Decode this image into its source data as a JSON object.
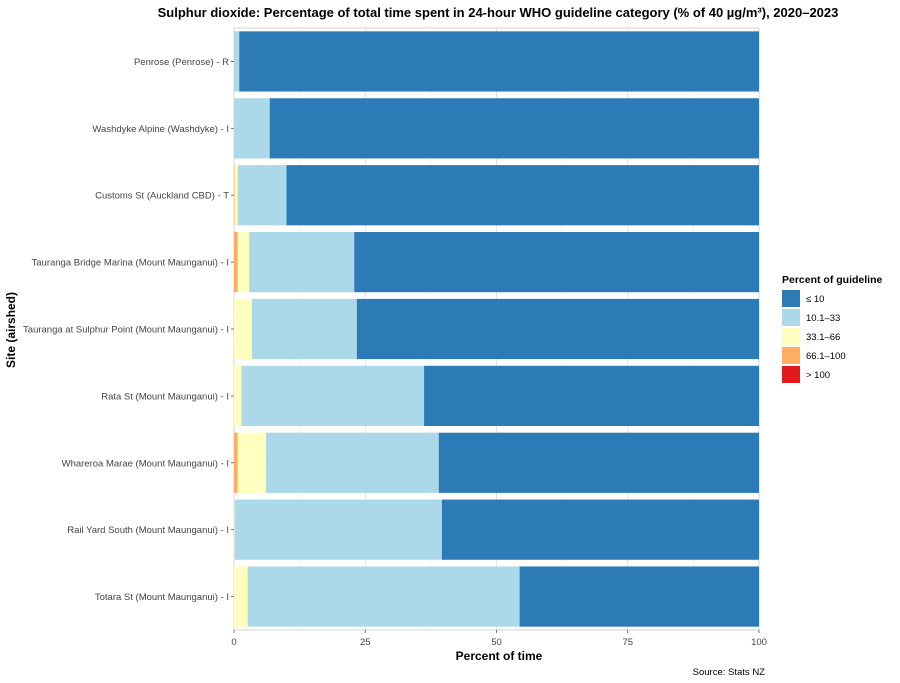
{
  "chart_data": {
    "type": "bar",
    "orientation": "horizontal",
    "stacked": true,
    "title": "Sulphur dioxide: Percentage of total time spent in 24-hour WHO guideline category (% of 40 µg/m³), 2020–2023",
    "xlabel": "Percent of time",
    "ylabel": "Site (airshed)",
    "xlim": [
      0,
      100
    ],
    "xticks": [
      "0",
      "25",
      "50",
      "75",
      "100"
    ],
    "grid": true,
    "legend": {
      "title": "Percent of guideline",
      "position": "right"
    },
    "source": "Source: Stats NZ",
    "categories": [
      "Penrose (Penrose) - R",
      "Washdyke Alpine (Washdyke) - I",
      "Customs St (Auckland CBD) - T",
      "Tauranga Bridge Marina (Mount Maunganui) - I",
      "Tauranga at Sulphur Point (Mount Maunganui) - I",
      "Rata St (Mount Maunganui) - I",
      "Whareroa Marae (Mount Maunganui) - I",
      "Rail Yard South (Mount Maunganui) - I",
      "Totara St (Mount Maunganui) - I"
    ],
    "series": [
      {
        "name": "> 100",
        "color": "#e31a1c",
        "values": [
          0,
          0,
          0,
          0,
          0,
          0,
          0,
          0,
          0
        ]
      },
      {
        "name": "66.1–100",
        "color": "#fdae61",
        "values": [
          0,
          0,
          0.1,
          0.7,
          0,
          0,
          0.7,
          0,
          0
        ]
      },
      {
        "name": "33.1–66",
        "color": "#ffffbf",
        "values": [
          0,
          0,
          0.6,
          2.2,
          3.4,
          1.4,
          5.4,
          0.1,
          2.6
        ]
      },
      {
        "name": "10.1–33",
        "color": "#abd9e9",
        "values": [
          1.0,
          6.8,
          9.3,
          20.0,
          20.0,
          34.8,
          32.9,
          39.5,
          51.8
        ]
      },
      {
        "name": "≤ 10",
        "color": "#2c7bb6",
        "values": [
          99.0,
          93.2,
          90.0,
          77.1,
          76.6,
          63.8,
          61.0,
          60.4,
          45.6
        ]
      }
    ]
  }
}
